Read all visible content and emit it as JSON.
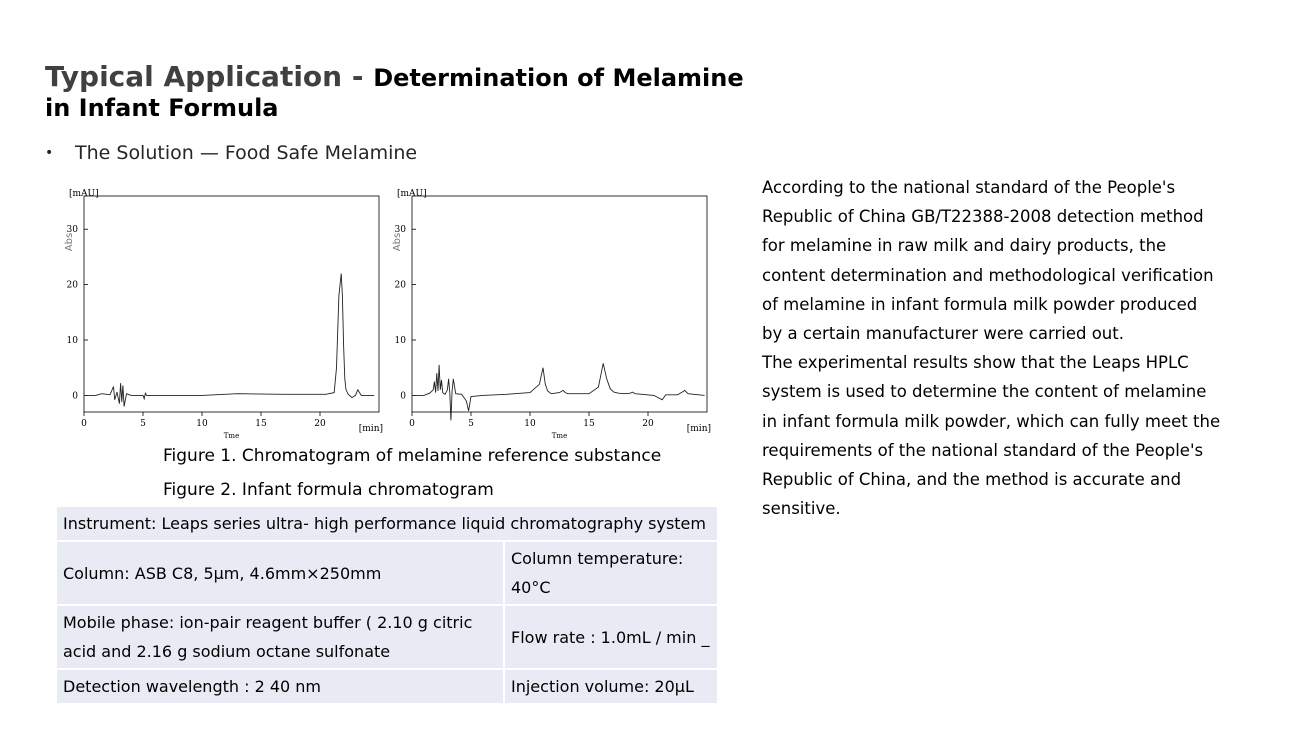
{
  "title": {
    "part1": "Typical Application",
    "sep": " - ",
    "part2": "Determination of Melamine in Infant Formula"
  },
  "bullet": "The Solution — Food Safe Melamine",
  "captions": {
    "fig1": "Figure 1. Chromatogram of melamine reference substance",
    "fig2": "Figure 2. Infant formula chromatogram"
  },
  "table": {
    "row1": "Instrument: Leaps series ultra- high performance liquid chromatography system",
    "row2_col1": "Column: ASB C8, 5μm, 4.6mm×250mm",
    "row2_col2": "Column temperature: 40°C",
    "row3_col1": "Mobile phase: ion-pair reagent buffer ( 2.10 g citric acid and 2.16 g sodium octane sulfonate",
    "row3_col2": "Flow rate : 1.0mL / min _",
    "row4_col1": "Detection wavelength : 2 40 nm",
    "row4_col2": "Injection volume: 20μL"
  },
  "description": {
    "para1": "According to the national standard of the People's Republic of China GB/T22388-2008 detection method for melamine in raw milk and dairy products, the content determination and methodological verification of melamine in infant formula milk powder produced by a certain manufacturer were carried out.",
    "para2": "The experimental results show that the Leaps HPLC system is used to determine the content of melamine in infant formula milk powder, which can fully meet the requirements of the national standard of the People's Republic of China, and the method is accurate and sensitive."
  },
  "chart_data": [
    {
      "type": "line",
      "title": "",
      "xlabel": "Tme",
      "ylabel": "Abs",
      "y_unit": "[mAU]",
      "x_unit": "[min]",
      "xlim": [
        0,
        25
      ],
      "ylim": [
        -3,
        36
      ],
      "xticks": [
        "0",
        "5",
        "10",
        "15",
        "20"
      ],
      "yticks": [
        "0",
        "10",
        "20",
        "30"
      ],
      "series": [
        {
          "x": [
            0,
            1,
            1.5,
            2.2,
            2.5,
            2.6,
            2.8,
            3.0,
            3.1,
            3.2,
            3.3,
            3.4,
            3.6,
            4.0,
            5.0,
            5.1,
            5.2,
            5.3,
            6,
            10,
            13,
            17,
            20.5,
            21.2,
            21.4,
            21.6,
            21.8,
            21.9,
            22.0,
            22.1,
            22.2,
            22.4,
            22.7,
            23.0,
            23.2,
            23.5,
            24.6
          ],
          "y": [
            0,
            0,
            0.3,
            0.1,
            1.6,
            -0.8,
            0.6,
            -1.5,
            2.2,
            -1.2,
            1.8,
            -2.0,
            0.3,
            0,
            0,
            -0.6,
            0.4,
            0,
            0,
            0,
            0.3,
            0.2,
            0.2,
            0.5,
            5.0,
            18.0,
            22.0,
            18.0,
            9.0,
            3.0,
            1.0,
            0.2,
            -0.4,
            0,
            1.0,
            0,
            0
          ]
        }
      ]
    },
    {
      "type": "line",
      "title": "",
      "xlabel": "Tme",
      "ylabel": "Abs",
      "y_unit": "[mAU]",
      "x_unit": "[min]",
      "xlim": [
        0,
        25
      ],
      "ylim": [
        -3,
        36
      ],
      "xticks": [
        "0",
        "5",
        "10",
        "15",
        "20"
      ],
      "yticks": [
        "0",
        "10",
        "20",
        "30"
      ],
      "series": [
        {
          "x": [
            0,
            1.0,
            1.5,
            1.8,
            1.9,
            2.0,
            2.1,
            2.2,
            2.3,
            2.4,
            2.5,
            2.6,
            2.8,
            3.0,
            3.1,
            3.2,
            3.3,
            3.4,
            3.5,
            3.7,
            4.2,
            4.6,
            4.8,
            5.0,
            6,
            8,
            10,
            10.8,
            11.1,
            11.3,
            11.5,
            11.8,
            12.5,
            12.8,
            13.0,
            13.2,
            15,
            15.8,
            16.2,
            16.5,
            16.8,
            17.1,
            17.5,
            18,
            18.5,
            18.7,
            18.9,
            20.5,
            21.2,
            21.5,
            22.5,
            22.9,
            23.1,
            23.4,
            24.8
          ],
          "y": [
            0,
            0,
            0.4,
            1.0,
            2.5,
            0.5,
            4.0,
            0.8,
            5.5,
            1.0,
            2.8,
            0.5,
            0.2,
            1.0,
            3.0,
            0.5,
            -4.5,
            0.8,
            3.0,
            0.3,
            0.2,
            -1.0,
            -2.8,
            -0.2,
            0,
            0.2,
            0.5,
            2.0,
            5.0,
            2.0,
            0.8,
            0.3,
            0.5,
            0.9,
            0.5,
            0.3,
            0.3,
            1.5,
            5.8,
            3.0,
            1.2,
            0.6,
            0.4,
            0.3,
            0.4,
            0.6,
            0.3,
            0,
            -0.8,
            0.1,
            0.1,
            0.6,
            0.9,
            0.3,
            0
          ]
        }
      ]
    }
  ]
}
